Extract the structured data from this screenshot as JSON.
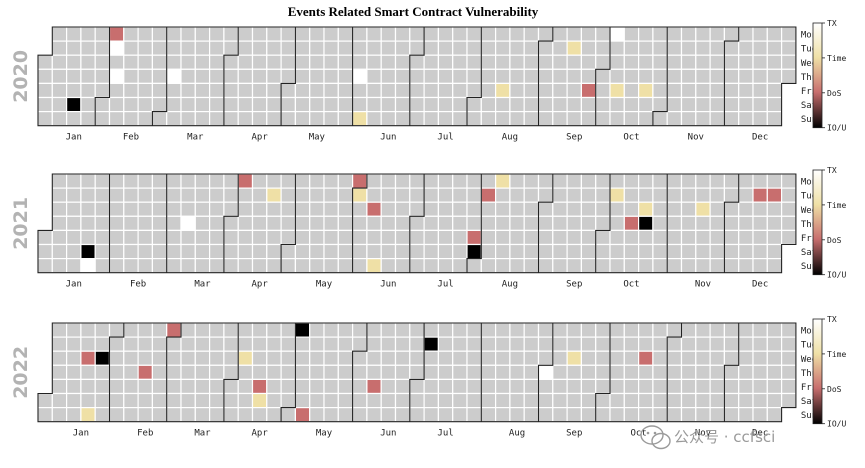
{
  "chart_data": {
    "type": "heatmap",
    "title": "Events Related Smart Contract Vulnerability",
    "weekdays": [
      "Mon",
      "Tue",
      "Wed",
      "Thu",
      "Fri",
      "Sat",
      "Sun"
    ],
    "months": [
      "Jan",
      "Feb",
      "Mar",
      "Apr",
      "May",
      "Jun",
      "Jul",
      "Aug",
      "Sep",
      "Oct",
      "Nov",
      "Dec"
    ],
    "colorbar": {
      "labels": [
        "TX",
        "Time",
        "DoS",
        "IO/U"
      ],
      "stops": [
        "#ffffff",
        "#efe0a6",
        "#c86e6e",
        "#000000"
      ]
    },
    "categories": [
      "TX",
      "Time",
      "DoS",
      "IO/U"
    ],
    "years": [
      {
        "year": "2020",
        "events": [
          {
            "date": "2020-01-18",
            "category": "IO/U"
          },
          {
            "date": "2020-02-03",
            "category": "DoS"
          },
          {
            "date": "2020-02-04",
            "category": "TX"
          },
          {
            "date": "2020-02-06",
            "category": "TX"
          },
          {
            "date": "2020-03-05",
            "category": "TX"
          },
          {
            "date": "2020-06-04",
            "category": "TX"
          },
          {
            "date": "2020-06-07",
            "category": "Time"
          },
          {
            "date": "2020-08-14",
            "category": "Time"
          },
          {
            "date": "2020-09-15",
            "category": "Time"
          },
          {
            "date": "2020-09-25",
            "category": "DoS"
          },
          {
            "date": "2020-10-05",
            "category": "TX"
          },
          {
            "date": "2020-10-09",
            "category": "Time"
          },
          {
            "date": "2020-10-23",
            "category": "Time"
          }
        ]
      },
      {
        "year": "2021",
        "events": [
          {
            "date": "2021-01-23",
            "category": "IO/U"
          },
          {
            "date": "2021-01-24",
            "category": "TX"
          },
          {
            "date": "2021-03-11",
            "category": "TX"
          },
          {
            "date": "2021-04-05",
            "category": "DoS"
          },
          {
            "date": "2021-04-20",
            "category": "Time"
          },
          {
            "date": "2021-05-31",
            "category": "DoS"
          },
          {
            "date": "2021-06-01",
            "category": "Time"
          },
          {
            "date": "2021-06-09",
            "category": "DoS"
          },
          {
            "date": "2021-06-13",
            "category": "Time"
          },
          {
            "date": "2021-07-30",
            "category": "DoS"
          },
          {
            "date": "2021-07-31",
            "category": "IO/U"
          },
          {
            "date": "2021-08-03",
            "category": "DoS"
          },
          {
            "date": "2021-08-09",
            "category": "Time"
          },
          {
            "date": "2021-10-05",
            "category": "Time"
          },
          {
            "date": "2021-10-14",
            "category": "DoS"
          },
          {
            "date": "2021-10-20",
            "category": "Time"
          },
          {
            "date": "2021-10-21",
            "category": "IO/U"
          },
          {
            "date": "2021-11-17",
            "category": "Time"
          },
          {
            "date": "2021-12-14",
            "category": "DoS"
          },
          {
            "date": "2021-12-21",
            "category": "DoS"
          }
        ]
      },
      {
        "year": "2022",
        "events": [
          {
            "date": "2022-01-19",
            "category": "DoS"
          },
          {
            "date": "2022-01-23",
            "category": "Time"
          },
          {
            "date": "2022-01-26",
            "category": "IO/U"
          },
          {
            "date": "2022-02-17",
            "category": "DoS"
          },
          {
            "date": "2022-02-28",
            "category": "DoS"
          },
          {
            "date": "2022-04-06",
            "category": "Time"
          },
          {
            "date": "2022-04-15",
            "category": "DoS"
          },
          {
            "date": "2022-04-16",
            "category": "Time"
          },
          {
            "date": "2022-05-02",
            "category": "IO/U"
          },
          {
            "date": "2022-05-08",
            "category": "DoS"
          },
          {
            "date": "2022-06-10",
            "category": "DoS"
          },
          {
            "date": "2022-07-05",
            "category": "IO/U"
          },
          {
            "date": "2022-09-01",
            "category": "TX"
          },
          {
            "date": "2022-09-14",
            "category": "Time"
          },
          {
            "date": "2022-10-19",
            "category": "DoS"
          }
        ]
      }
    ]
  },
  "watermark": {
    "text": "公众号 · ccfsci",
    "icon": "wechat-icon"
  }
}
